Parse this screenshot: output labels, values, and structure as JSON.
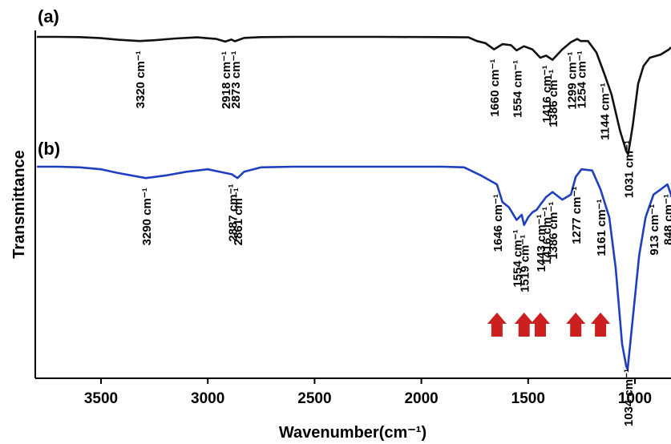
{
  "chart_data": {
    "type": "line",
    "xlabel": "Wavenumber(cm⁻¹)",
    "ylabel": "Transmittance",
    "xlim": [
      3800,
      800
    ],
    "x_reversed": true,
    "xticks": [
      3500,
      3000,
      2500,
      2000,
      1500,
      1000
    ],
    "y_ticks_shown": false,
    "grid": false,
    "colors": {
      "a": "#111111",
      "b": "#1f3fbf",
      "arrow": "#cc1f1f"
    },
    "series": [
      {
        "panel": "(a)",
        "color": "#111111",
        "points": [
          [
            3800,
            0.0
          ],
          [
            3700,
            0.0
          ],
          [
            3600,
            0.2
          ],
          [
            3500,
            1.2
          ],
          [
            3420,
            2.8
          ],
          [
            3320,
            4.0
          ],
          [
            3250,
            3.2
          ],
          [
            3150,
            1.5
          ],
          [
            3050,
            0.5
          ],
          [
            2960,
            2.0
          ],
          [
            2918,
            4.5
          ],
          [
            2890,
            2.5
          ],
          [
            2873,
            4.2
          ],
          [
            2830,
            1.0
          ],
          [
            2750,
            0.2
          ],
          [
            2600,
            0.0
          ],
          [
            2200,
            0.0
          ],
          [
            1900,
            0.2
          ],
          [
            1780,
            0.5
          ],
          [
            1740,
            4.0
          ],
          [
            1700,
            6.0
          ],
          [
            1660,
            12.0
          ],
          [
            1620,
            7.0
          ],
          [
            1580,
            8.0
          ],
          [
            1554,
            13.0
          ],
          [
            1520,
            9.0
          ],
          [
            1480,
            12.0
          ],
          [
            1443,
            20.0
          ],
          [
            1416,
            18.0
          ],
          [
            1386,
            22.0
          ],
          [
            1340,
            12.0
          ],
          [
            1299,
            5.0
          ],
          [
            1270,
            2.0
          ],
          [
            1254,
            4.0
          ],
          [
            1220,
            4.0
          ],
          [
            1180,
            15.0
          ],
          [
            1144,
            35.0
          ],
          [
            1110,
            55.0
          ],
          [
            1070,
            90.0
          ],
          [
            1040,
            110.0
          ],
          [
            1031,
            112.0
          ],
          [
            1010,
            85.0
          ],
          [
            985,
            45.0
          ],
          [
            960,
            28.0
          ],
          [
            930,
            20.0
          ],
          [
            880,
            17.0
          ],
          [
            840,
            12.0
          ],
          [
            800,
            10.0
          ]
        ]
      },
      {
        "panel": "(b)",
        "color": "#1f3fbf",
        "points": [
          [
            3800,
            0.0
          ],
          [
            3700,
            0.0
          ],
          [
            3600,
            0.5
          ],
          [
            3500,
            2.0
          ],
          [
            3420,
            5.0
          ],
          [
            3290,
            9.0
          ],
          [
            3200,
            7.0
          ],
          [
            3100,
            4.0
          ],
          [
            3000,
            2.0
          ],
          [
            2960,
            3.5
          ],
          [
            2887,
            6.0
          ],
          [
            2861,
            9.0
          ],
          [
            2830,
            4.0
          ],
          [
            2750,
            0.5
          ],
          [
            2600,
            0.0
          ],
          [
            2200,
            0.0
          ],
          [
            1900,
            0.0
          ],
          [
            1800,
            0.5
          ],
          [
            1720,
            7.0
          ],
          [
            1646,
            14.0
          ],
          [
            1620,
            28.0
          ],
          [
            1590,
            32.0
          ],
          [
            1554,
            42.0
          ],
          [
            1530,
            38.0
          ],
          [
            1519,
            46.0
          ],
          [
            1500,
            40.0
          ],
          [
            1480,
            36.0
          ],
          [
            1460,
            34.0
          ],
          [
            1443,
            30.0
          ],
          [
            1416,
            24.0
          ],
          [
            1386,
            20.0
          ],
          [
            1340,
            26.0
          ],
          [
            1300,
            22.0
          ],
          [
            1277,
            8.0
          ],
          [
            1250,
            2.0
          ],
          [
            1200,
            3.0
          ],
          [
            1161,
            18.0
          ],
          [
            1120,
            40.0
          ],
          [
            1090,
            80.0
          ],
          [
            1060,
            140.0
          ],
          [
            1040,
            158.0
          ],
          [
            1034,
            160.0
          ],
          [
            1010,
            120.0
          ],
          [
            980,
            70.0
          ],
          [
            950,
            40.0
          ],
          [
            913,
            22.0
          ],
          [
            880,
            18.0
          ],
          [
            848,
            14.0
          ],
          [
            820,
            22.0
          ],
          [
            800,
            24.0
          ]
        ]
      }
    ],
    "annotations_a": [
      {
        "text": "3320 cm⁻¹",
        "x": 3320
      },
      {
        "text": "2918 cm⁻¹",
        "x": 2918
      },
      {
        "text": "2873 cm⁻¹",
        "x": 2873
      },
      {
        "text": "1660 cm⁻¹",
        "x": 1660
      },
      {
        "text": "1554 cm⁻¹",
        "x": 1554
      },
      {
        "text": "1416 cm⁻¹",
        "x": 1416
      },
      {
        "text": "1386 cm⁻¹",
        "x": 1386
      },
      {
        "text": "1299 cm⁻¹",
        "x": 1299
      },
      {
        "text": "1254 cm⁻¹",
        "x": 1254
      },
      {
        "text": "1144 cm⁻¹",
        "x": 1144
      },
      {
        "text": "1031 cm⁻¹",
        "x": 1031
      }
    ],
    "annotations_b": [
      {
        "text": "3290 cm⁻¹",
        "x": 3290
      },
      {
        "text": "2887 cm⁻¹",
        "x": 2887
      },
      {
        "text": "2861 cm⁻¹",
        "x": 2861
      },
      {
        "text": "1646 cm⁻¹",
        "x": 1646,
        "arrow": true
      },
      {
        "text": "1554 cm⁻¹",
        "x": 1554
      },
      {
        "text": "1519 cm⁻¹",
        "x": 1519,
        "arrow": true
      },
      {
        "text": "1443 cm⁻¹",
        "x": 1443,
        "arrow": true
      },
      {
        "text": "1416 cm⁻¹",
        "x": 1416
      },
      {
        "text": "1386 cm⁻¹",
        "x": 1386
      },
      {
        "text": "1277 cm⁻¹",
        "x": 1277,
        "arrow": true
      },
      {
        "text": "1161 cm⁻¹",
        "x": 1161,
        "arrow": true
      },
      {
        "text": "1034 cm⁻¹",
        "x": 1034
      },
      {
        "text": "913 cm⁻¹",
        "x": 913
      },
      {
        "text": "848 cm⁻¹",
        "x": 848
      }
    ]
  }
}
